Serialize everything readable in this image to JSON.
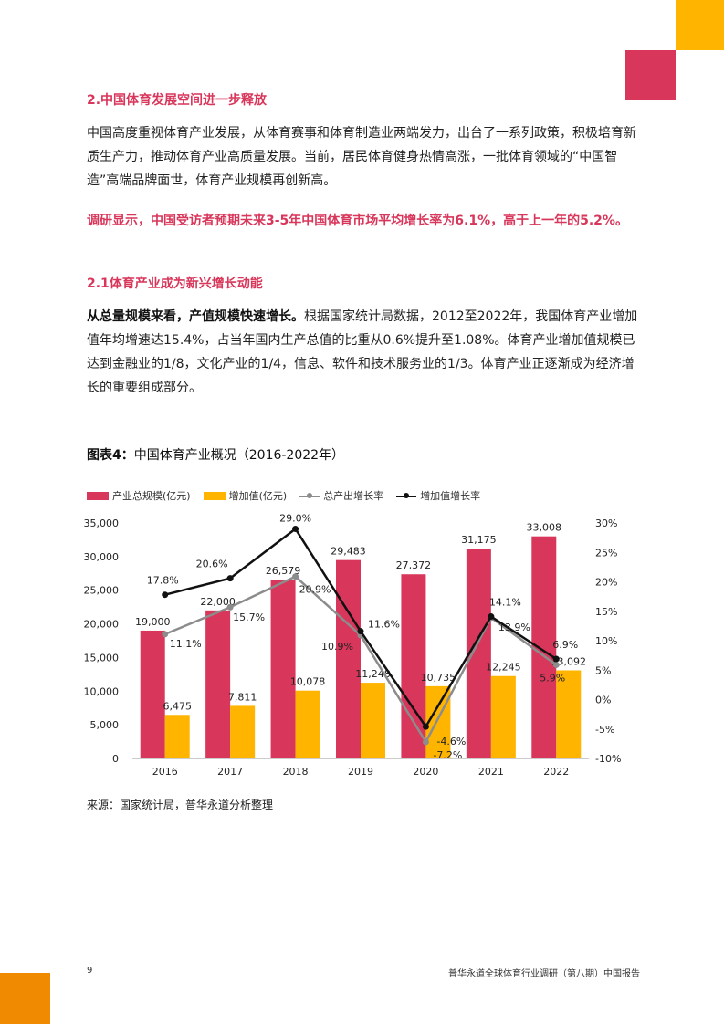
{
  "section_heading": "2.中国体育发展空间进一步释放",
  "paragraph1": "中国高度重视体育产业发展，从体育赛事和体育制造业两端发力，出台了一系列政策，积极培育新质生产力，推动体育产业高质量发展。当前，居民体育健身热情高涨，一批体育领域的“中国智造”高端品牌面世，体育产业规模再创新高。",
  "highlight": "调研显示，中国受访者预期未来3-5年中国体育市场平均增长率为6.1%，高于上一年的5.2%。",
  "subheading": "2.1体育产业成为新兴增长动能",
  "paragraph2_bold": "从总量规模来看，产值规模快速增长。",
  "paragraph2_rest": "根据国家统计局数据，2012至2022年，我国体育产业增加值年均增速达15.4%，占当年国内生产总值的比重从0.6%提升至1.08%。体育产业增加值规模已达到金融业的1/8，文化产业的1/4，信息、软件和技术服务业的1/3。体育产业正逐渐成为经济增长的重要组成部分。",
  "figure_label": "图表4：",
  "figure_title": "中国体育产业概况（2016-2022年）",
  "source": "来源：国家统计局，普华永道分析整理",
  "page_number": "9",
  "footer": "普华永道全球体育行业调研（第八期）中国报告",
  "colors": {
    "red": "#D8365A",
    "yellow": "#FFB400",
    "gray": "#8C8C8C",
    "black": "#111111"
  },
  "chart_data": {
    "type": "bar",
    "categories": [
      "2016",
      "2017",
      "2018",
      "2019",
      "2020",
      "2021",
      "2022"
    ],
    "series": [
      {
        "name": "产业总规模(亿元)",
        "kind": "bar",
        "axis": "left",
        "values": [
          19000,
          22000,
          26579,
          29483,
          27372,
          31175,
          33008
        ],
        "labels": [
          "19,000",
          "22,000",
          "26,579",
          "29,483",
          "27,372",
          "31,175",
          "33,008"
        ]
      },
      {
        "name": "增加值(亿元)",
        "kind": "bar",
        "axis": "left",
        "values": [
          6475,
          7811,
          10078,
          11248,
          10735,
          12245,
          13092
        ],
        "labels": [
          "6,475",
          "7,811",
          "10,078",
          "11,248",
          "10,735",
          "12,245",
          "13,092"
        ]
      },
      {
        "name": "总产出增长率",
        "kind": "line",
        "axis": "right",
        "values": [
          11.1,
          15.7,
          20.9,
          10.9,
          -7.2,
          13.9,
          5.9
        ],
        "labels": [
          "11.1%",
          "15.7%",
          "20.9%",
          "10.9%",
          "-7.2%",
          "13.9%",
          "5.9%"
        ]
      },
      {
        "name": "增加值增长率",
        "kind": "line",
        "axis": "right",
        "values": [
          17.8,
          20.6,
          29.0,
          11.6,
          -4.6,
          14.1,
          6.9
        ],
        "labels": [
          "17.8%",
          "20.6%",
          "29.0%",
          "11.6%",
          "-4.6%",
          "14.1%",
          "6.9%"
        ]
      }
    ],
    "left_axis": {
      "min": 0,
      "max": 35000,
      "ticks": [
        "0",
        "5,000",
        "10,000",
        "15,000",
        "20,000",
        "25,000",
        "30,000",
        "35,000"
      ]
    },
    "right_axis": {
      "min": -10,
      "max": 30,
      "ticks": [
        "-10%",
        "-5%",
        "0%",
        "5%",
        "10%",
        "15%",
        "20%",
        "25%",
        "30%"
      ]
    },
    "legend_position": "top-left",
    "grid": false
  }
}
